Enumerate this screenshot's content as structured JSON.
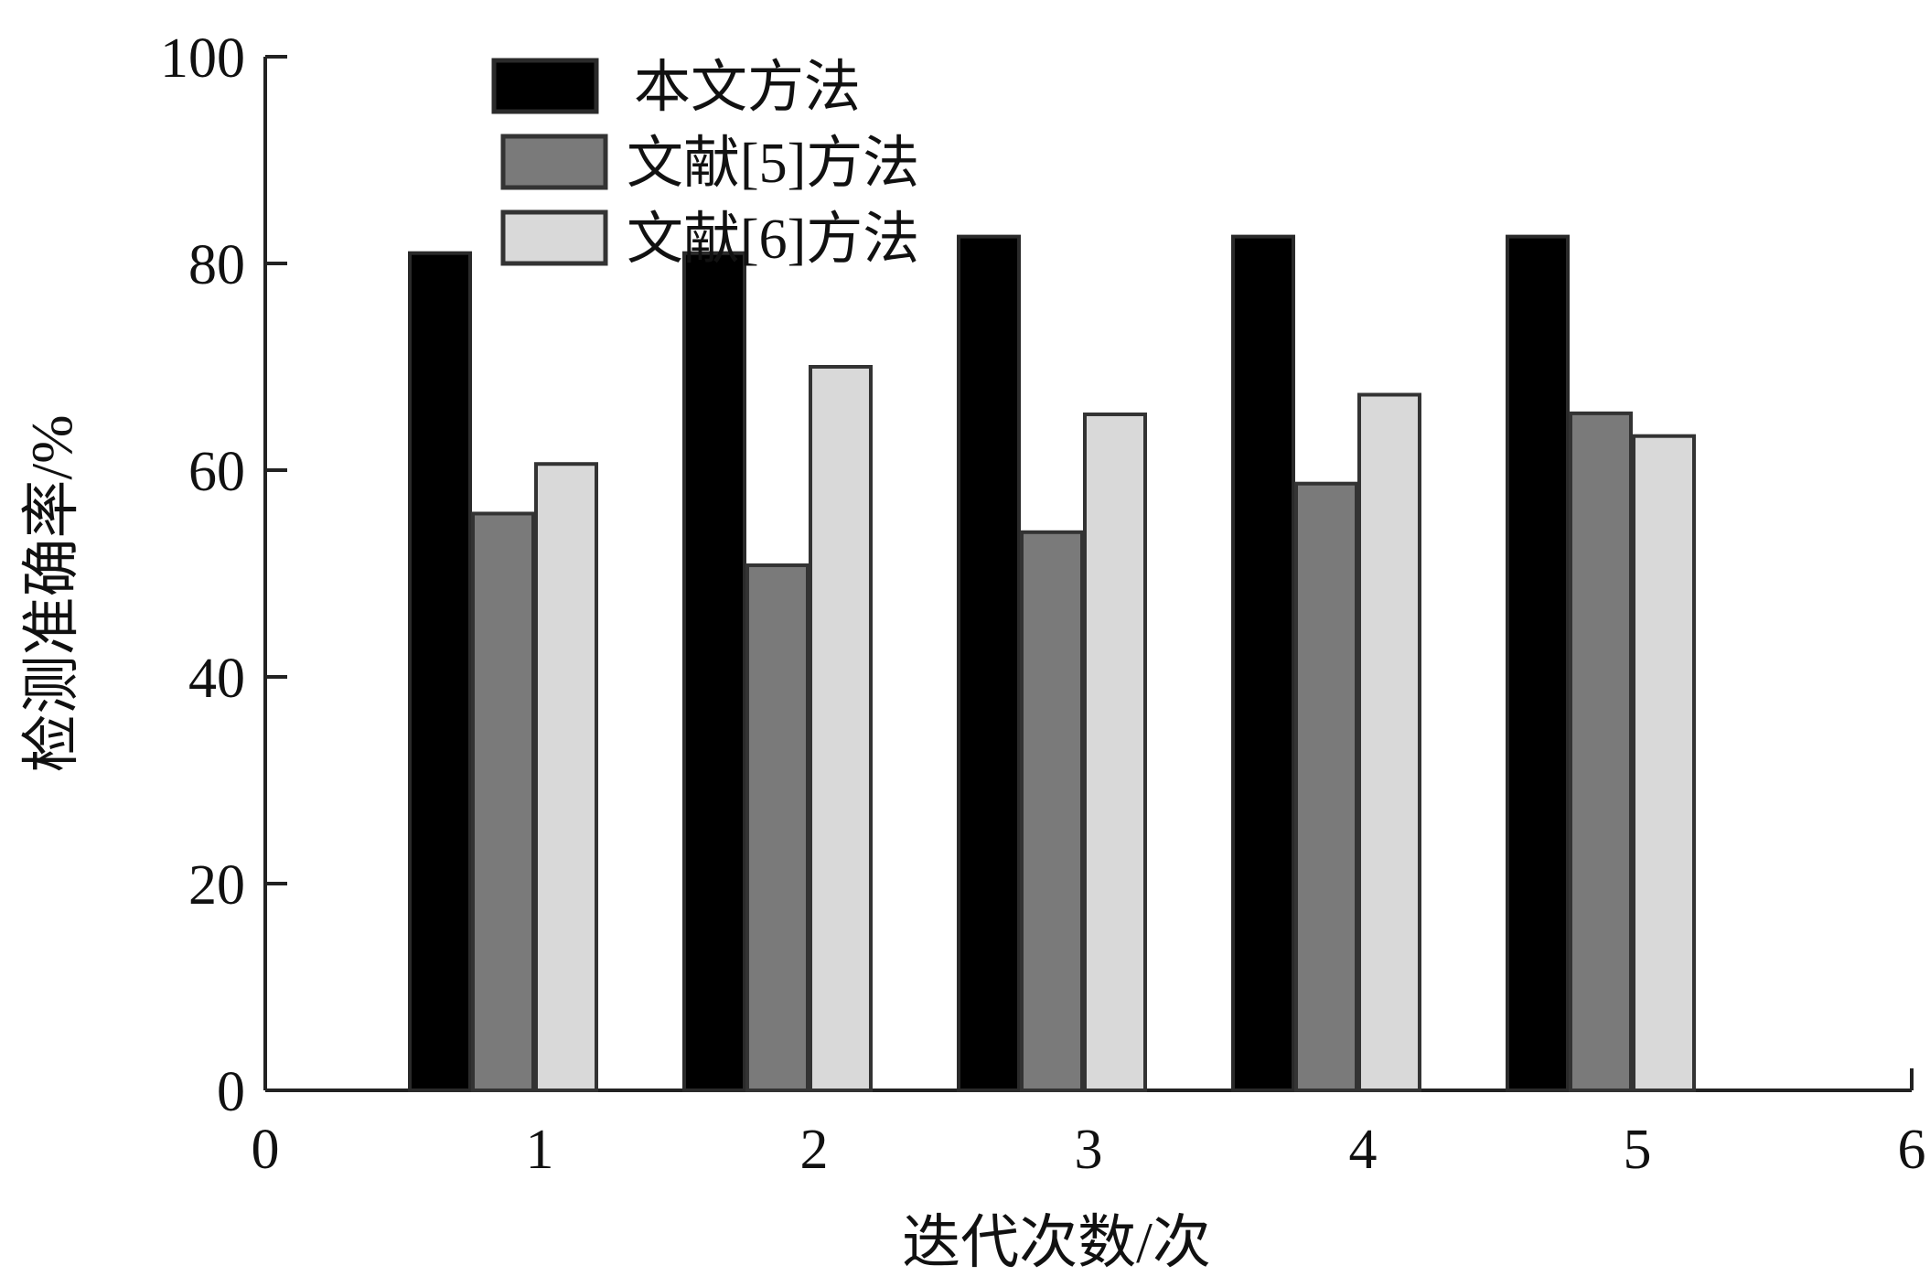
{
  "chart_data": {
    "type": "bar",
    "categories": [
      1,
      2,
      3,
      4,
      5
    ],
    "series": [
      {
        "name": "本文方法",
        "values": [
          81,
          81,
          82.6,
          82.6,
          82.6
        ],
        "color": "#000000",
        "stroke": "#2a2a2a"
      },
      {
        "name": "文献[5]方法",
        "values": [
          55.8,
          50.8,
          54,
          58.7,
          65.5
        ],
        "color": "#7a7a7a",
        "stroke": "#333333"
      },
      {
        "name": "文献[6]方法",
        "values": [
          60.6,
          70,
          65.4,
          67.3,
          63.3
        ],
        "color": "#d9d9d9",
        "stroke": "#333333"
      }
    ],
    "xlabel": "迭代次数/次",
    "ylabel": "检测准确率/%",
    "xlim": [
      0,
      6
    ],
    "ylim": [
      0,
      100
    ],
    "xticks": [
      0,
      1,
      2,
      3,
      4,
      5,
      6
    ],
    "yticks": [
      0,
      20,
      40,
      60,
      80,
      100
    ],
    "grid": false,
    "legend_position": "top-left"
  }
}
